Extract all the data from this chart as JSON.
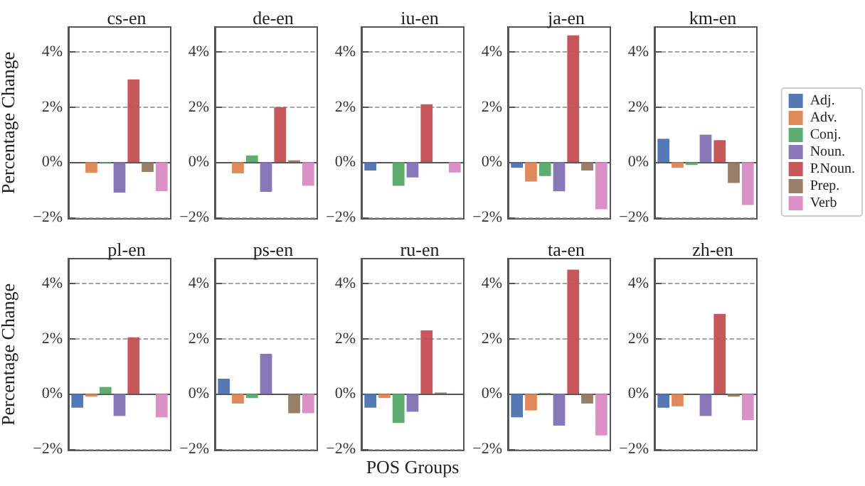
{
  "chart_data": [
    {
      "type": "bar",
      "title": "cs-en",
      "ylabel": "Percentage Change",
      "categories": [
        null
      ],
      "tick_labels": "y",
      "grid": "y",
      "ylim": [
        -2.05,
        4.9
      ],
      "yticks": [
        {
          "value": -2,
          "label": "−2%"
        },
        {
          "value": 0,
          "label": "0%"
        },
        {
          "value": 2,
          "label": "2%"
        },
        {
          "value": 4,
          "label": "4%"
        }
      ],
      "series": [
        {
          "color": "#4c72b0",
          "values": [
            0
          ]
        },
        {
          "color": "#dd8452",
          "values": [
            -0.38
          ]
        },
        {
          "color": "#55a868",
          "values": [
            -0.05
          ]
        },
        {
          "color": "#8172b3",
          "values": [
            -1.1
          ]
        },
        {
          "color": "#c44e52",
          "values": [
            3.0
          ]
        },
        {
          "color": "#937860",
          "values": [
            -0.35
          ]
        },
        {
          "color": "#da8bc3",
          "values": [
            -1.05
          ]
        }
      ]
    },
    {
      "type": "bar",
      "title": "de-en",
      "categories": [
        null
      ],
      "tick_labels": "y",
      "grid": "y",
      "ylim": [
        -2.05,
        4.9
      ],
      "yticks": [
        {
          "value": -2,
          "label": "−2%"
        },
        {
          "value": 0,
          "label": "0%"
        },
        {
          "value": 2,
          "label": "2%"
        },
        {
          "value": 4,
          "label": "4%"
        }
      ],
      "series": [
        {
          "color": "#4c72b0",
          "values": [
            0
          ]
        },
        {
          "color": "#dd8452",
          "values": [
            -0.4
          ]
        },
        {
          "color": "#55a868",
          "values": [
            0.25
          ]
        },
        {
          "color": "#8172b3",
          "values": [
            -1.07
          ]
        },
        {
          "color": "#c44e52",
          "values": [
            2.0
          ]
        },
        {
          "color": "#937860",
          "values": [
            0.07
          ]
        },
        {
          "color": "#da8bc3",
          "values": [
            -0.85
          ]
        }
      ]
    },
    {
      "type": "bar",
      "title": "iu-en",
      "categories": [
        null
      ],
      "tick_labels": "y",
      "grid": "y",
      "ylim": [
        -2.05,
        4.9
      ],
      "yticks": [
        {
          "value": -2,
          "label": "−2%"
        },
        {
          "value": 0,
          "label": "0%"
        },
        {
          "value": 2,
          "label": "2%"
        },
        {
          "value": 4,
          "label": "4%"
        }
      ],
      "series": [
        {
          "color": "#4c72b0",
          "values": [
            -0.3
          ]
        },
        {
          "color": "#dd8452",
          "values": [
            0
          ]
        },
        {
          "color": "#55a868",
          "values": [
            -0.85
          ]
        },
        {
          "color": "#8172b3",
          "values": [
            -0.55
          ]
        },
        {
          "color": "#c44e52",
          "values": [
            2.1
          ]
        },
        {
          "color": "#937860",
          "values": [
            0
          ]
        },
        {
          "color": "#da8bc3",
          "values": [
            -0.37
          ]
        }
      ]
    },
    {
      "type": "bar",
      "title": "ja-en",
      "categories": [
        null
      ],
      "tick_labels": "y",
      "grid": "y",
      "ylim": [
        -2.05,
        4.9
      ],
      "yticks": [
        {
          "value": -2,
          "label": "−2%"
        },
        {
          "value": 0,
          "label": "0%"
        },
        {
          "value": 2,
          "label": "2%"
        },
        {
          "value": 4,
          "label": "4%"
        }
      ],
      "series": [
        {
          "color": "#4c72b0",
          "values": [
            -0.2
          ]
        },
        {
          "color": "#dd8452",
          "values": [
            -0.7
          ]
        },
        {
          "color": "#55a868",
          "values": [
            -0.5
          ]
        },
        {
          "color": "#8172b3",
          "values": [
            -1.05
          ]
        },
        {
          "color": "#c44e52",
          "values": [
            4.6
          ]
        },
        {
          "color": "#937860",
          "values": [
            -0.3
          ]
        },
        {
          "color": "#da8bc3",
          "values": [
            -1.7
          ]
        }
      ]
    },
    {
      "type": "bar",
      "title": "km-en",
      "categories": [
        null
      ],
      "tick_labels": "y",
      "grid": "y",
      "legend": "right",
      "ylim": [
        -2.05,
        4.9
      ],
      "yticks": [
        {
          "value": -2,
          "label": "−2%"
        },
        {
          "value": 0,
          "label": "0%"
        },
        {
          "value": 2,
          "label": "2%"
        },
        {
          "value": 4,
          "label": "4%"
        }
      ],
      "series": [
        {
          "name": "Adj.",
          "color": "#4c72b0",
          "values": [
            0.85
          ]
        },
        {
          "name": "Adv.",
          "color": "#dd8452",
          "values": [
            -0.2
          ]
        },
        {
          "name": "Conj.",
          "color": "#55a868",
          "values": [
            -0.1
          ]
        },
        {
          "name": "Noun.",
          "color": "#8172b3",
          "values": [
            1.0
          ]
        },
        {
          "name": "P.Noun.",
          "color": "#c44e52",
          "values": [
            0.8
          ]
        },
        {
          "name": "Prep.",
          "color": "#937860",
          "values": [
            -0.75
          ]
        },
        {
          "name": "Verb",
          "color": "#da8bc3",
          "values": [
            -1.55
          ]
        }
      ]
    },
    {
      "type": "bar",
      "title": "pl-en",
      "ylabel": "Percentage Change",
      "categories": [
        null
      ],
      "tick_labels": "y",
      "grid": "y",
      "ylim": [
        -2.05,
        4.9
      ],
      "yticks": [
        {
          "value": -2,
          "label": "−2%"
        },
        {
          "value": 0,
          "label": "0%"
        },
        {
          "value": 2,
          "label": "2%"
        },
        {
          "value": 4,
          "label": "4%"
        }
      ],
      "series": [
        {
          "color": "#4c72b0",
          "values": [
            -0.5
          ]
        },
        {
          "color": "#dd8452",
          "values": [
            -0.1
          ]
        },
        {
          "color": "#55a868",
          "values": [
            0.25
          ]
        },
        {
          "color": "#8172b3",
          "values": [
            -0.8
          ]
        },
        {
          "color": "#c44e52",
          "values": [
            2.05
          ]
        },
        {
          "color": "#937860",
          "values": [
            0
          ]
        },
        {
          "color": "#da8bc3",
          "values": [
            -0.85
          ]
        }
      ]
    },
    {
      "type": "bar",
      "title": "ps-en",
      "categories": [
        null
      ],
      "tick_labels": "y",
      "grid": "y",
      "ylim": [
        -2.05,
        4.9
      ],
      "yticks": [
        {
          "value": -2,
          "label": "−2%"
        },
        {
          "value": 0,
          "label": "0%"
        },
        {
          "value": 2,
          "label": "2%"
        },
        {
          "value": 4,
          "label": "4%"
        }
      ],
      "series": [
        {
          "color": "#4c72b0",
          "values": [
            0.55
          ]
        },
        {
          "color": "#dd8452",
          "values": [
            -0.35
          ]
        },
        {
          "color": "#55a868",
          "values": [
            -0.15
          ]
        },
        {
          "color": "#8172b3",
          "values": [
            1.45
          ]
        },
        {
          "color": "#c44e52",
          "values": [
            0
          ]
        },
        {
          "color": "#937860",
          "values": [
            -0.7
          ]
        },
        {
          "color": "#da8bc3",
          "values": [
            -0.7
          ]
        }
      ]
    },
    {
      "type": "bar",
      "title": "ru-en",
      "xlabel": "POS Groups",
      "categories": [
        null
      ],
      "tick_labels": "y",
      "grid": "y",
      "ylim": [
        -2.05,
        4.9
      ],
      "yticks": [
        {
          "value": -2,
          "label": "−2%"
        },
        {
          "value": 0,
          "label": "0%"
        },
        {
          "value": 2,
          "label": "2%"
        },
        {
          "value": 4,
          "label": "4%"
        }
      ],
      "series": [
        {
          "color": "#4c72b0",
          "values": [
            -0.5
          ]
        },
        {
          "color": "#dd8452",
          "values": [
            -0.15
          ]
        },
        {
          "color": "#55a868",
          "values": [
            -1.05
          ]
        },
        {
          "color": "#8172b3",
          "values": [
            -0.65
          ]
        },
        {
          "color": "#c44e52",
          "values": [
            2.3
          ]
        },
        {
          "color": "#937860",
          "values": [
            0.05
          ]
        },
        {
          "color": "#da8bc3",
          "values": [
            0
          ]
        }
      ]
    },
    {
      "type": "bar",
      "title": "ta-en",
      "categories": [
        null
      ],
      "tick_labels": "y",
      "grid": "y",
      "ylim": [
        -2.05,
        4.9
      ],
      "yticks": [
        {
          "value": -2,
          "label": "−2%"
        },
        {
          "value": 0,
          "label": "0%"
        },
        {
          "value": 2,
          "label": "2%"
        },
        {
          "value": 4,
          "label": "4%"
        }
      ],
      "series": [
        {
          "color": "#4c72b0",
          "values": [
            -0.85
          ]
        },
        {
          "color": "#dd8452",
          "values": [
            -0.6
          ]
        },
        {
          "color": "#55a868",
          "values": [
            0.03
          ]
        },
        {
          "color": "#8172b3",
          "values": [
            -1.15
          ]
        },
        {
          "color": "#c44e52",
          "values": [
            4.5
          ]
        },
        {
          "color": "#937860",
          "values": [
            -0.35
          ]
        },
        {
          "color": "#da8bc3",
          "values": [
            -1.5
          ]
        }
      ]
    },
    {
      "type": "bar",
      "title": "zh-en",
      "categories": [
        null
      ],
      "tick_labels": "y",
      "grid": "y",
      "ylim": [
        -2.05,
        4.9
      ],
      "yticks": [
        {
          "value": -2,
          "label": "−2%"
        },
        {
          "value": 0,
          "label": "0%"
        },
        {
          "value": 2,
          "label": "2%"
        },
        {
          "value": 4,
          "label": "4%"
        }
      ],
      "series": [
        {
          "color": "#4c72b0",
          "values": [
            -0.5
          ]
        },
        {
          "color": "#dd8452",
          "values": [
            -0.45
          ]
        },
        {
          "color": "#55a868",
          "values": [
            0
          ]
        },
        {
          "color": "#8172b3",
          "values": [
            -0.8
          ]
        },
        {
          "color": "#c44e52",
          "values": [
            2.9
          ]
        },
        {
          "color": "#937860",
          "values": [
            -0.1
          ]
        },
        {
          "color": "#da8bc3",
          "values": [
            -0.95
          ]
        }
      ]
    }
  ]
}
